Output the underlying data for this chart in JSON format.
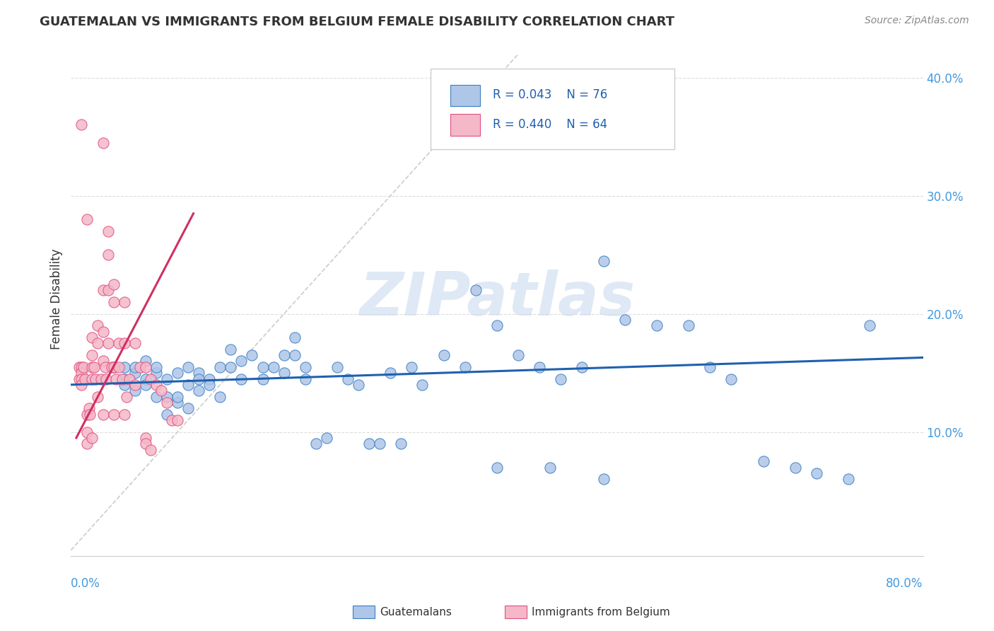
{
  "title": "GUATEMALAN VS IMMIGRANTS FROM BELGIUM FEMALE DISABILITY CORRELATION CHART",
  "source": "Source: ZipAtlas.com",
  "ylabel": "Female Disability",
  "xlim": [
    0.0,
    0.8
  ],
  "ylim": [
    -0.005,
    0.43
  ],
  "yticks": [
    0.1,
    0.2,
    0.3,
    0.4
  ],
  "ytick_labels": [
    "10.0%",
    "20.0%",
    "30.0%",
    "40.0%"
  ],
  "xtick_left_label": "0.0%",
  "xtick_right_label": "80.0%",
  "legend_r1": "R = 0.043",
  "legend_n1": "N = 76",
  "legend_r2": "R = 0.440",
  "legend_n2": "N = 64",
  "color_blue_fill": "#aec6e8",
  "color_blue_edge": "#3a7fc1",
  "color_pink_fill": "#f4b8c8",
  "color_pink_edge": "#e05080",
  "color_blue_line": "#2060b0",
  "color_pink_line": "#d03060",
  "color_ref_line": "#cccccc",
  "color_grid": "#dddddd",
  "color_title": "#333333",
  "color_source": "#888888",
  "color_legend_text": "#2060b0",
  "color_axis_labels": "#4499dd",
  "watermark_text": "ZIPatlas",
  "blue_scatter_x": [
    0.04,
    0.05,
    0.05,
    0.05,
    0.06,
    0.06,
    0.06,
    0.07,
    0.07,
    0.07,
    0.08,
    0.08,
    0.08,
    0.09,
    0.09,
    0.09,
    0.1,
    0.1,
    0.1,
    0.11,
    0.11,
    0.11,
    0.12,
    0.12,
    0.12,
    0.13,
    0.13,
    0.14,
    0.14,
    0.15,
    0.15,
    0.16,
    0.16,
    0.17,
    0.18,
    0.18,
    0.19,
    0.2,
    0.2,
    0.21,
    0.21,
    0.22,
    0.22,
    0.23,
    0.24,
    0.25,
    0.26,
    0.27,
    0.28,
    0.29,
    0.3,
    0.31,
    0.32,
    0.33,
    0.35,
    0.37,
    0.38,
    0.4,
    0.42,
    0.44,
    0.46,
    0.48,
    0.5,
    0.52,
    0.55,
    0.58,
    0.6,
    0.62,
    0.65,
    0.68,
    0.7,
    0.73,
    0.75,
    0.4,
    0.45,
    0.5
  ],
  "blue_scatter_y": [
    0.155,
    0.155,
    0.145,
    0.14,
    0.15,
    0.135,
    0.155,
    0.145,
    0.14,
    0.16,
    0.15,
    0.13,
    0.155,
    0.13,
    0.115,
    0.145,
    0.125,
    0.13,
    0.15,
    0.12,
    0.14,
    0.155,
    0.15,
    0.145,
    0.135,
    0.145,
    0.14,
    0.13,
    0.155,
    0.17,
    0.155,
    0.16,
    0.145,
    0.165,
    0.155,
    0.145,
    0.155,
    0.165,
    0.15,
    0.165,
    0.18,
    0.155,
    0.145,
    0.09,
    0.095,
    0.155,
    0.145,
    0.14,
    0.09,
    0.09,
    0.15,
    0.09,
    0.155,
    0.14,
    0.165,
    0.155,
    0.22,
    0.19,
    0.165,
    0.155,
    0.145,
    0.155,
    0.245,
    0.195,
    0.19,
    0.19,
    0.155,
    0.145,
    0.075,
    0.07,
    0.065,
    0.06,
    0.19,
    0.07,
    0.07,
    0.06
  ],
  "pink_scatter_x": [
    0.008,
    0.008,
    0.01,
    0.01,
    0.01,
    0.01,
    0.012,
    0.013,
    0.015,
    0.015,
    0.015,
    0.017,
    0.018,
    0.02,
    0.02,
    0.02,
    0.02,
    0.02,
    0.022,
    0.023,
    0.025,
    0.025,
    0.025,
    0.028,
    0.03,
    0.03,
    0.03,
    0.03,
    0.032,
    0.033,
    0.035,
    0.035,
    0.035,
    0.038,
    0.04,
    0.04,
    0.04,
    0.042,
    0.045,
    0.045,
    0.048,
    0.05,
    0.05,
    0.052,
    0.055,
    0.06,
    0.065,
    0.07,
    0.075,
    0.08,
    0.085,
    0.09,
    0.095,
    0.1,
    0.03,
    0.035,
    0.04,
    0.05,
    0.06,
    0.07,
    0.01,
    0.015,
    0.07,
    0.075
  ],
  "pink_scatter_y": [
    0.155,
    0.145,
    0.155,
    0.15,
    0.145,
    0.14,
    0.155,
    0.145,
    0.115,
    0.1,
    0.09,
    0.12,
    0.115,
    0.18,
    0.165,
    0.155,
    0.145,
    0.095,
    0.155,
    0.145,
    0.19,
    0.175,
    0.13,
    0.145,
    0.22,
    0.185,
    0.16,
    0.115,
    0.155,
    0.145,
    0.25,
    0.22,
    0.175,
    0.155,
    0.225,
    0.155,
    0.115,
    0.145,
    0.175,
    0.155,
    0.145,
    0.21,
    0.115,
    0.13,
    0.145,
    0.175,
    0.155,
    0.155,
    0.145,
    0.14,
    0.135,
    0.125,
    0.11,
    0.11,
    0.345,
    0.27,
    0.21,
    0.175,
    0.14,
    0.095,
    0.36,
    0.28,
    0.09,
    0.085
  ],
  "blue_trend_x0": 0.0,
  "blue_trend_x1": 0.8,
  "blue_trend_y0": 0.14,
  "blue_trend_y1": 0.163,
  "pink_trend_x0": 0.005,
  "pink_trend_x1": 0.115,
  "pink_trend_y0": 0.095,
  "pink_trend_y1": 0.285,
  "ref_line_x0": 0.0,
  "ref_line_x1": 0.42,
  "ref_line_y0": 0.0,
  "ref_line_y1": 0.42
}
